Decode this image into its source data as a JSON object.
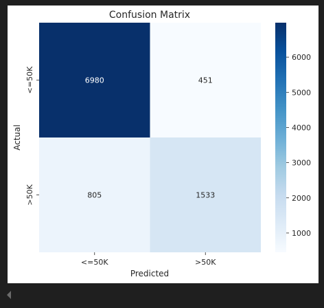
{
  "chart_data": {
    "type": "heatmap",
    "title": "Confusion Matrix",
    "xlabel": "Predicted",
    "ylabel": "Actual",
    "x_categories": [
      "<=50K",
      ">50K"
    ],
    "y_categories": [
      "<=50K",
      ">50K"
    ],
    "values": [
      [
        6980,
        451
      ],
      [
        805,
        1533
      ]
    ],
    "colormap": "Blues",
    "colorbar": {
      "min": 451,
      "max": 6980,
      "ticks": [
        1000,
        2000,
        3000,
        4000,
        5000,
        6000
      ],
      "tick_labels": [
        "1000",
        "2000",
        "3000",
        "4000",
        "5000",
        "6000"
      ]
    },
    "grid": false,
    "legend": "none"
  },
  "colors": {
    "background": "#1f1f1f",
    "panel": "#ffffff",
    "low": "#f7fbff",
    "high": "#08306b",
    "dark_text": "#262626",
    "light_text": "#ffffff"
  }
}
